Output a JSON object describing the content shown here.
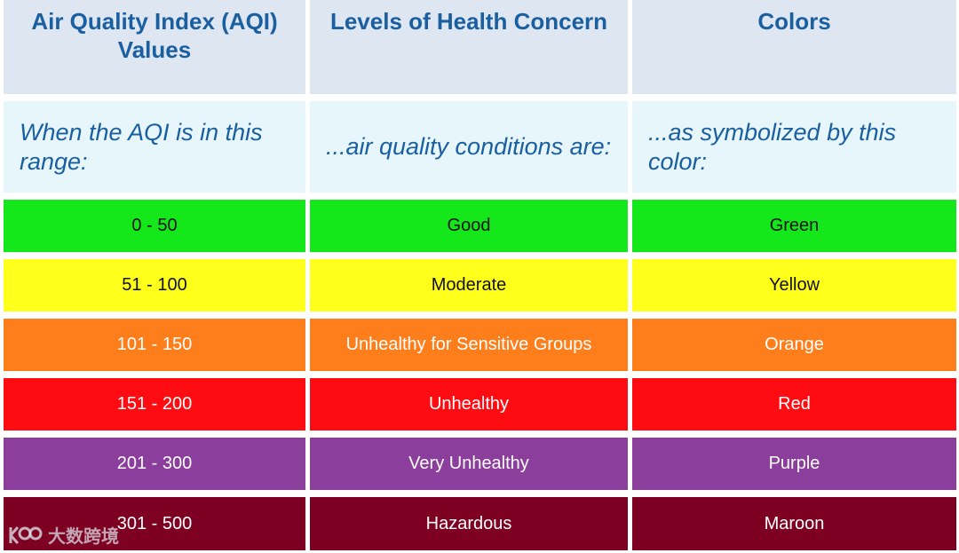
{
  "header": {
    "col1": "Air Quality Index (AQI) Values",
    "col2": "Levels of Health Concern",
    "col3": "Colors"
  },
  "subheader": {
    "col1": "When the AQI is in this range:",
    "col2": "...air quality conditions are:",
    "col3": "...as symbolized by this color:"
  },
  "rows": [
    {
      "range": "0 - 50",
      "level": "Good",
      "color_name": "Green",
      "bg": "#14e81b",
      "text": "dark"
    },
    {
      "range": "51 - 100",
      "level": "Moderate",
      "color_name": "Yellow",
      "bg": "#ffff1c",
      "text": "dark"
    },
    {
      "range": "101 - 150",
      "level": "Unhealthy for Sensitive Groups",
      "color_name": "Orange",
      "bg": "#ff7e1c",
      "text": "light"
    },
    {
      "range": "151 - 200",
      "level": "Unhealthy",
      "color_name": "Red",
      "bg": "#ff0c12",
      "text": "light"
    },
    {
      "range": "201 - 300",
      "level": "Very Unhealthy",
      "color_name": "Purple",
      "bg": "#8c3e9c",
      "text": "light"
    },
    {
      "range": "301 - 500",
      "level": "Hazardous",
      "color_name": "Maroon",
      "bg": "#7d0022",
      "text": "light"
    }
  ],
  "watermark": {
    "text": "大数跨境",
    "logo_icon": "watermark-logo-icon"
  }
}
